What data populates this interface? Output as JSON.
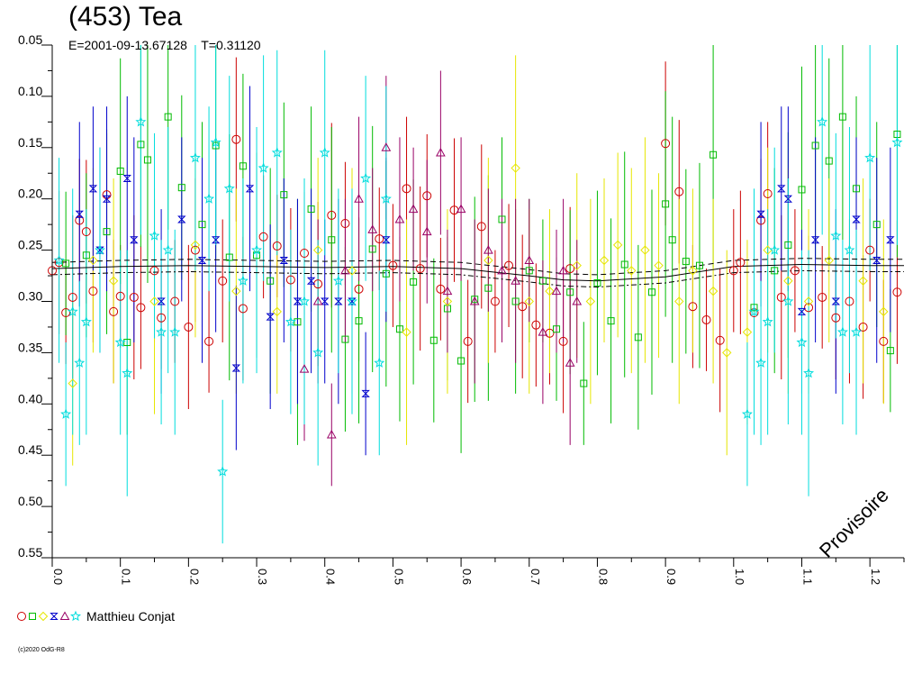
{
  "chart_data": {
    "type": "scatter",
    "title": "(453) Tea",
    "subtitle": "E=2001-09-13.67128    T=0.31120",
    "xlim": [
      0.0,
      1.25
    ],
    "ylim": [
      0.05,
      0.55
    ],
    "y_inverted": true,
    "x_ticks": [
      "0.0",
      "0.1",
      "0.2",
      "0.3",
      "0.4",
      "0.5",
      "0.6",
      "0.7",
      "0.8",
      "0.9",
      "1.0",
      "1.1",
      "1.2"
    ],
    "y_ticks": [
      "0.05",
      "0.10",
      "0.15",
      "0.20",
      "0.25",
      "0.30",
      "0.35",
      "0.40",
      "0.45",
      "0.50",
      "0.55"
    ],
    "grid": false,
    "legend_position": "bottom-left",
    "legend_label": "Matthieu Conjat",
    "watermark": "Provisoire",
    "copyright": "(c)2020 OdG-R8",
    "fit_curve": {
      "x": [
        0.0,
        0.1,
        0.2,
        0.3,
        0.4,
        0.5,
        0.6,
        0.7,
        0.75,
        0.8,
        0.9,
        1.0,
        1.1,
        1.2,
        1.25
      ],
      "y": [
        0.268,
        0.266,
        0.265,
        0.266,
        0.267,
        0.266,
        0.268,
        0.275,
        0.279,
        0.28,
        0.276,
        0.266,
        0.264,
        0.265,
        0.265
      ],
      "band": 0.006
    },
    "series": [
      {
        "marker": "circle",
        "color": "#cc0000",
        "x": [
          0.0,
          0.01,
          0.02,
          0.03,
          0.04,
          0.05,
          0.06,
          0.08,
          0.09,
          0.1,
          0.12,
          0.13,
          0.15,
          0.16,
          0.18,
          0.2,
          0.21,
          0.23,
          0.25,
          0.27,
          0.28,
          0.31,
          0.33,
          0.35,
          0.37,
          0.39,
          0.41,
          0.43,
          0.45,
          0.48,
          0.5,
          0.52,
          0.54,
          0.55,
          0.57,
          0.59,
          0.61,
          0.63,
          0.65,
          0.67,
          0.69,
          0.71,
          0.73,
          0.75,
          0.76,
          0.9,
          0.92,
          0.94,
          0.96,
          0.98,
          1.0,
          1.01,
          1.03,
          1.04,
          1.05,
          1.07,
          1.09,
          1.11,
          1.13,
          1.15,
          1.17,
          1.19,
          1.2,
          1.22,
          1.24
        ],
        "y": [
          0.27,
          0.262,
          0.311,
          0.296,
          0.221,
          0.232,
          0.29,
          0.196,
          0.31,
          0.295,
          0.296,
          0.306,
          0.27,
          0.316,
          0.3,
          0.325,
          0.25,
          0.339,
          0.28,
          0.142,
          0.307,
          0.237,
          0.246,
          0.279,
          0.253,
          0.283,
          0.216,
          0.224,
          0.288,
          0.239,
          0.265,
          0.19,
          0.268,
          0.197,
          0.288,
          0.211,
          0.339,
          0.227,
          0.3,
          0.265,
          0.305,
          0.323,
          0.331,
          0.339,
          0.268,
          0.146,
          0.193,
          0.305,
          0.318,
          0.338,
          0.27,
          0.262,
          0.311,
          0.221,
          0.195,
          0.296,
          0.27,
          0.306,
          0.296,
          0.316,
          0.3,
          0.325,
          0.25,
          0.339,
          0.291
        ],
        "err": [
          0.06,
          0.07,
          0.05,
          0.08,
          0.06,
          0.07,
          0.05,
          0.06,
          0.07,
          0.05,
          0.08,
          0.06,
          0.07,
          0.05,
          0.06,
          0.08,
          0.07,
          0.05,
          0.06,
          0.08,
          0.07,
          0.06,
          0.05,
          0.07,
          0.06,
          0.08,
          0.09,
          0.06,
          0.07,
          0.05,
          0.06,
          0.07,
          0.08,
          0.06,
          0.05,
          0.07,
          0.06,
          0.08,
          0.05,
          0.06,
          0.07,
          0.06,
          0.05,
          0.07,
          0.06,
          0.08,
          0.07,
          0.06,
          0.05,
          0.07,
          0.06,
          0.07,
          0.05,
          0.06,
          0.07,
          0.08,
          0.06,
          0.07,
          0.05,
          0.06,
          0.08,
          0.07,
          0.05,
          0.06,
          0.07
        ]
      },
      {
        "marker": "square",
        "color": "#00bb00",
        "x": [
          0.02,
          0.05,
          0.08,
          0.1,
          0.11,
          0.13,
          0.14,
          0.17,
          0.19,
          0.22,
          0.24,
          0.26,
          0.28,
          0.3,
          0.32,
          0.34,
          0.36,
          0.38,
          0.41,
          0.43,
          0.45,
          0.47,
          0.49,
          0.51,
          0.53,
          0.56,
          0.58,
          0.6,
          0.62,
          0.64,
          0.66,
          0.68,
          0.7,
          0.72,
          0.74,
          0.76,
          0.78,
          0.8,
          0.82,
          0.84,
          0.86,
          0.88,
          0.9,
          0.91,
          0.93,
          0.95,
          0.97,
          1.03,
          1.06,
          1.08,
          1.1,
          1.12,
          1.14,
          1.16,
          1.18,
          1.21,
          1.23,
          1.24
        ],
        "y": [
          0.263,
          0.255,
          0.232,
          0.173,
          0.34,
          0.147,
          0.162,
          0.12,
          0.189,
          0.225,
          0.148,
          0.257,
          0.168,
          0.255,
          0.28,
          0.196,
          0.32,
          0.21,
          0.24,
          0.337,
          0.319,
          0.249,
          0.273,
          0.327,
          0.281,
          0.338,
          0.307,
          0.358,
          0.298,
          0.287,
          0.22,
          0.3,
          0.27,
          0.28,
          0.327,
          0.291,
          0.38,
          0.282,
          0.319,
          0.264,
          0.335,
          0.291,
          0.205,
          0.24,
          0.261,
          0.265,
          0.157,
          0.306,
          0.27,
          0.245,
          0.191,
          0.148,
          0.163,
          0.12,
          0.19,
          0.225,
          0.348,
          0.137
        ],
        "err": [
          0.07,
          0.08,
          0.1,
          0.11,
          0.09,
          0.1,
          0.12,
          0.11,
          0.09,
          0.1,
          0.11,
          0.12,
          0.09,
          0.1,
          0.11,
          0.09,
          0.12,
          0.1,
          0.11,
          0.09,
          0.1,
          0.12,
          0.11,
          0.09,
          0.1,
          0.08,
          0.07,
          0.09,
          0.1,
          0.11,
          0.08,
          0.09,
          0.07,
          0.06,
          0.07,
          0.08,
          0.06,
          0.09,
          0.1,
          0.11,
          0.09,
          0.1,
          0.11,
          0.12,
          0.09,
          0.1,
          0.11,
          0.09,
          0.1,
          0.11,
          0.12,
          0.11,
          0.1,
          0.12,
          0.09,
          0.1,
          0.06,
          0.12
        ]
      },
      {
        "marker": "diamond",
        "color": "#e6e600",
        "x": [
          0.03,
          0.06,
          0.09,
          0.15,
          0.21,
          0.27,
          0.33,
          0.39,
          0.44,
          0.52,
          0.58,
          0.64,
          0.68,
          0.7,
          0.73,
          0.77,
          0.79,
          0.81,
          0.83,
          0.85,
          0.87,
          0.89,
          0.92,
          0.94,
          0.97,
          0.99,
          1.02,
          1.05,
          1.08,
          1.11,
          1.14,
          1.19,
          1.22
        ],
        "y": [
          0.38,
          0.26,
          0.28,
          0.3,
          0.245,
          0.29,
          0.31,
          0.25,
          0.27,
          0.33,
          0.3,
          0.26,
          0.17,
          0.3,
          0.29,
          0.265,
          0.3,
          0.26,
          0.245,
          0.27,
          0.25,
          0.265,
          0.3,
          0.27,
          0.29,
          0.35,
          0.33,
          0.25,
          0.28,
          0.3,
          0.26,
          0.28,
          0.31
        ],
        "err": [
          0.08,
          0.09,
          0.1,
          0.11,
          0.09,
          0.1,
          0.08,
          0.09,
          0.1,
          0.11,
          0.09,
          0.1,
          0.11,
          0.09,
          0.08,
          0.09,
          0.1,
          0.08,
          0.09,
          0.1,
          0.11,
          0.09,
          0.1,
          0.08,
          0.09,
          0.1,
          0.09,
          0.1,
          0.11,
          0.09,
          0.08,
          0.1,
          0.09
        ]
      },
      {
        "marker": "hourglass",
        "color": "#0000cc",
        "x": [
          0.04,
          0.06,
          0.07,
          0.08,
          0.11,
          0.12,
          0.16,
          0.19,
          0.22,
          0.24,
          0.27,
          0.29,
          0.32,
          0.34,
          0.36,
          0.38,
          0.4,
          0.42,
          0.44,
          0.46,
          0.49,
          1.04,
          1.07,
          1.08,
          1.1,
          1.12,
          1.15,
          1.18,
          1.21,
          1.23
        ],
        "y": [
          0.215,
          0.19,
          0.25,
          0.2,
          0.18,
          0.24,
          0.3,
          0.22,
          0.26,
          0.24,
          0.365,
          0.19,
          0.315,
          0.26,
          0.3,
          0.28,
          0.3,
          0.3,
          0.3,
          0.39,
          0.24,
          0.215,
          0.19,
          0.2,
          0.31,
          0.24,
          0.3,
          0.22,
          0.26,
          0.24
        ],
        "err": [
          0.09,
          0.08,
          0.1,
          0.09,
          0.08,
          0.1,
          0.09,
          0.08,
          0.1,
          0.09,
          0.08,
          0.1,
          0.09,
          0.08,
          0.1,
          0.09,
          0.08,
          0.1,
          0.09,
          0.06,
          0.08,
          0.09,
          0.08,
          0.09,
          0.08,
          0.1,
          0.09,
          0.08,
          0.1,
          0.09
        ]
      },
      {
        "marker": "triangle",
        "color": "#990066",
        "x": [
          0.37,
          0.39,
          0.41,
          0.43,
          0.45,
          0.47,
          0.49,
          0.51,
          0.53,
          0.55,
          0.57,
          0.58,
          0.6,
          0.62,
          0.64,
          0.66,
          0.68,
          0.7,
          0.72,
          0.74,
          0.75,
          0.76,
          0.77
        ],
        "y": [
          0.366,
          0.3,
          0.43,
          0.27,
          0.2,
          0.23,
          0.15,
          0.22,
          0.21,
          0.232,
          0.155,
          0.29,
          0.21,
          0.3,
          0.25,
          0.27,
          0.28,
          0.26,
          0.33,
          0.29,
          0.27,
          0.36,
          0.3
        ],
        "err": [
          0.07,
          0.08,
          0.05,
          0.07,
          0.08,
          0.06,
          0.07,
          0.08,
          0.06,
          0.07,
          0.08,
          0.06,
          0.07,
          0.08,
          0.06,
          0.07,
          0.08,
          0.06,
          0.07,
          0.06,
          0.07,
          0.08,
          0.06
        ]
      },
      {
        "marker": "star",
        "color": "#00dddd",
        "x": [
          0.01,
          0.02,
          0.03,
          0.04,
          0.05,
          0.07,
          0.1,
          0.11,
          0.13,
          0.15,
          0.16,
          0.17,
          0.18,
          0.21,
          0.23,
          0.24,
          0.25,
          0.26,
          0.28,
          0.3,
          0.31,
          0.33,
          0.35,
          0.37,
          0.39,
          0.4,
          0.42,
          0.44,
          0.46,
          0.48,
          0.49,
          1.02,
          1.03,
          1.04,
          1.05,
          1.06,
          1.08,
          1.1,
          1.11,
          1.13,
          1.15,
          1.16,
          1.17,
          1.18,
          1.2,
          1.24
        ],
        "y": [
          0.26,
          0.41,
          0.31,
          0.36,
          0.32,
          0.25,
          0.34,
          0.37,
          0.125,
          0.236,
          0.33,
          0.25,
          0.33,
          0.16,
          0.2,
          0.145,
          0.466,
          0.19,
          0.28,
          0.25,
          0.17,
          0.155,
          0.32,
          0.3,
          0.35,
          0.155,
          0.28,
          0.3,
          0.18,
          0.36,
          0.2,
          0.41,
          0.31,
          0.36,
          0.32,
          0.25,
          0.3,
          0.34,
          0.37,
          0.125,
          0.236,
          0.33,
          0.25,
          0.33,
          0.16,
          0.145
        ],
        "err": [
          0.1,
          0.07,
          0.12,
          0.08,
          0.11,
          0.1,
          0.09,
          0.12,
          0.11,
          0.1,
          0.09,
          0.12,
          0.1,
          0.11,
          0.09,
          0.1,
          0.07,
          0.11,
          0.1,
          0.12,
          0.11,
          0.1,
          0.09,
          0.12,
          0.11,
          0.1,
          0.09,
          0.11,
          0.1,
          0.09,
          0.11,
          0.07,
          0.12,
          0.08,
          0.11,
          0.1,
          0.12,
          0.09,
          0.12,
          0.11,
          0.1,
          0.09,
          0.12,
          0.1,
          0.11,
          0.1
        ]
      }
    ]
  }
}
